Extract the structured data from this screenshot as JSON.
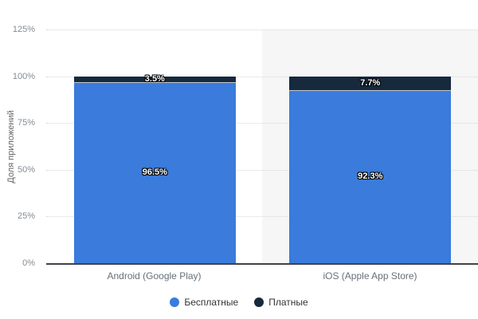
{
  "chart_data": {
    "type": "bar",
    "stacked": true,
    "categories": [
      "Android (Google Play)",
      "iOS (Apple App Store)"
    ],
    "series": [
      {
        "name": "Бесплатные",
        "color": "#3a7bdb",
        "values": [
          96.5,
          92.3
        ]
      },
      {
        "name": "Платные",
        "color": "#16293d",
        "values": [
          3.5,
          7.7
        ]
      }
    ],
    "ylabel": "Доля приложений",
    "yticks": [
      "0%",
      "25%",
      "50%",
      "75%",
      "100%",
      "125%"
    ],
    "ylim": [
      0,
      125
    ],
    "value_suffix": "%",
    "grid": "horizontal-dotted",
    "gridline_color": "#d6d6d6",
    "plot_band_color": "#f6f6f7",
    "axis_line_color": "#3f4347",
    "legend_position": "bottom-center"
  }
}
